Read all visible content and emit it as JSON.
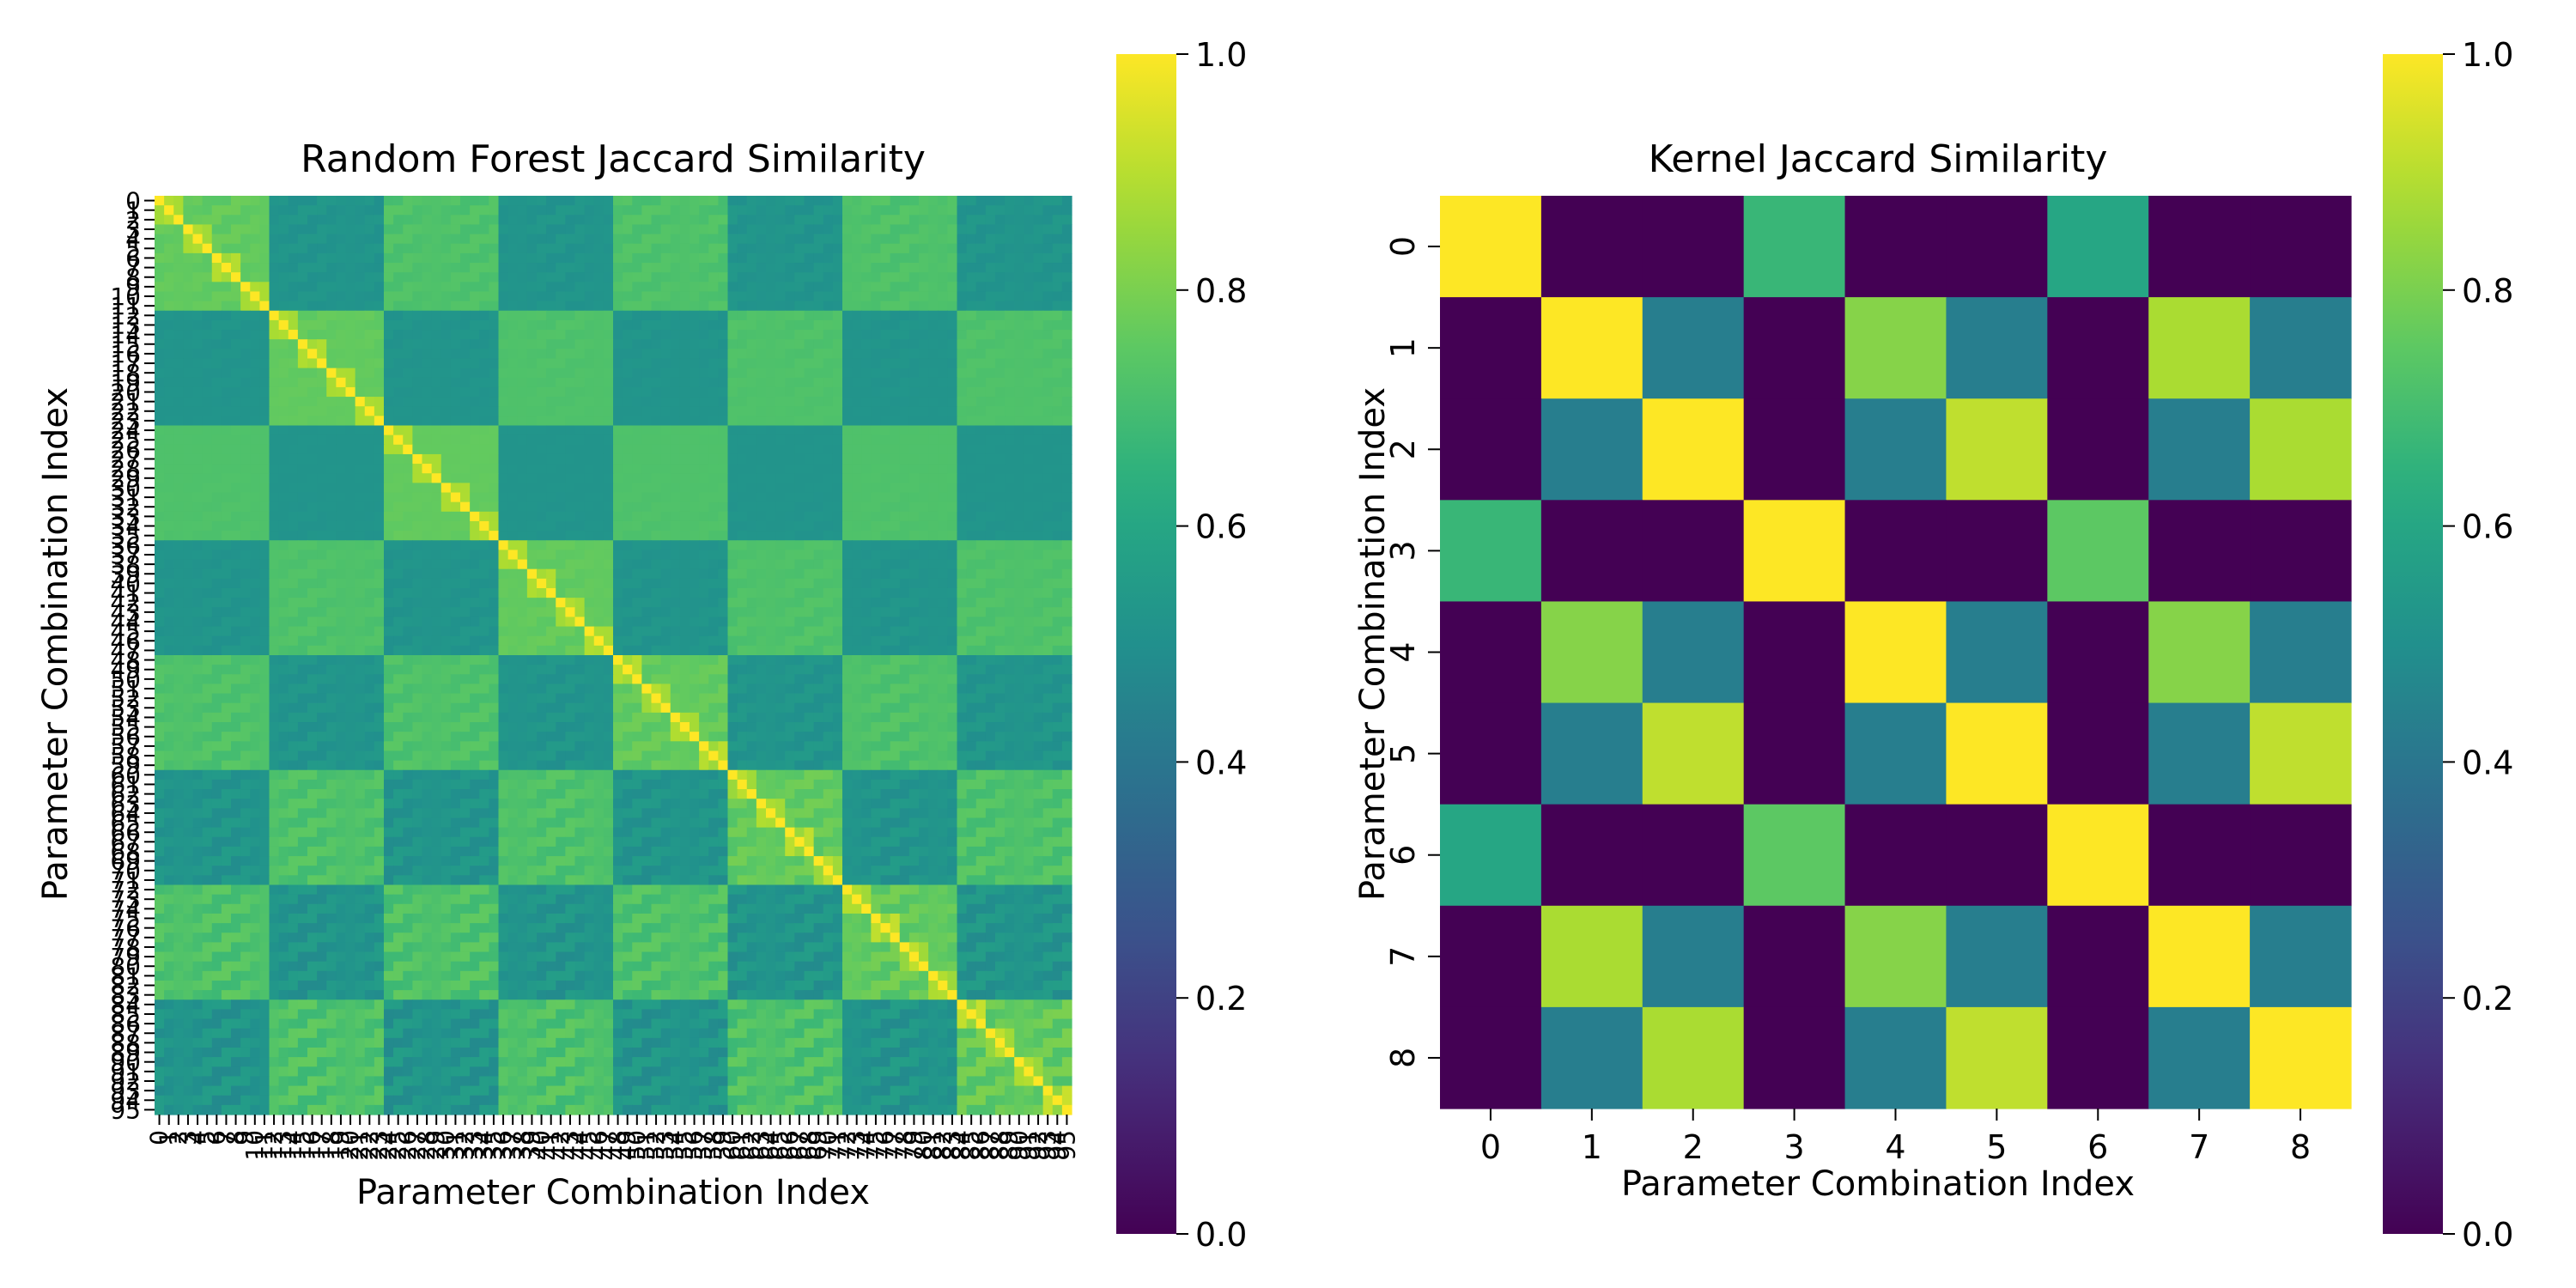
{
  "chart_data": [
    {
      "type": "heatmap",
      "title": "Random Forest Jaccard Similarity",
      "xlabel": "Parameter Combination Index",
      "ylabel": "Parameter Combination Index",
      "size": 96,
      "tick_labels": [
        "0",
        "1",
        "2",
        "3",
        "4",
        "5",
        "6",
        "7",
        "8",
        "9",
        "10",
        "11",
        "12",
        "13",
        "14",
        "15",
        "16",
        "17",
        "18",
        "19",
        "20",
        "21",
        "22",
        "23",
        "24",
        "25",
        "26",
        "27",
        "28",
        "29",
        "30",
        "31",
        "32",
        "33",
        "34",
        "35",
        "36",
        "37",
        "38",
        "39",
        "40",
        "41",
        "42",
        "43",
        "44",
        "45",
        "46",
        "47",
        "48",
        "49",
        "50",
        "51",
        "52",
        "53",
        "54",
        "55",
        "56",
        "57",
        "58",
        "59",
        "60",
        "61",
        "62",
        "63",
        "64",
        "65",
        "66",
        "67",
        "68",
        "69",
        "70",
        "71",
        "72",
        "73",
        "74",
        "75",
        "76",
        "77",
        "78",
        "79",
        "80",
        "81",
        "82",
        "83",
        "84",
        "85",
        "86",
        "87",
        "88",
        "89",
        "90",
        "91",
        "92",
        "93",
        "94",
        "95"
      ],
      "structure": {
        "description_of_pattern": "block structure: 96 combos = 4 outer groups x 8 mid x 3 inner",
        "diagonal": 1.0,
        "same_mid_block": 0.88,
        "same_outer_group_parity": 0.72,
        "other": 0.52
      },
      "colorbar": {
        "min": 0.0,
        "max": 1.0,
        "ticks": [
          "0.0",
          "0.2",
          "0.4",
          "0.6",
          "0.8",
          "1.0"
        ]
      },
      "colormap": "viridis"
    },
    {
      "type": "heatmap",
      "title": "Kernel Jaccard Similarity",
      "xlabel": "Parameter Combination Index",
      "ylabel": "Parameter Combination Index",
      "x_tick_labels": [
        "0",
        "1",
        "2",
        "3",
        "4",
        "5",
        "6",
        "7",
        "8"
      ],
      "y_tick_labels": [
        "0",
        "1",
        "2",
        "3",
        "4",
        "5",
        "6",
        "7",
        "8"
      ],
      "values": [
        [
          1.0,
          0.0,
          0.0,
          0.67,
          0.0,
          0.0,
          0.6,
          0.0,
          0.0
        ],
        [
          0.0,
          1.0,
          0.43,
          0.0,
          0.82,
          0.43,
          0.0,
          0.88,
          0.43
        ],
        [
          0.0,
          0.43,
          1.0,
          0.0,
          0.43,
          0.91,
          0.0,
          0.43,
          0.88
        ],
        [
          0.67,
          0.0,
          0.0,
          1.0,
          0.0,
          0.0,
          0.75,
          0.0,
          0.0
        ],
        [
          0.0,
          0.82,
          0.43,
          0.0,
          1.0,
          0.43,
          0.0,
          0.82,
          0.43
        ],
        [
          0.0,
          0.43,
          0.91,
          0.0,
          0.43,
          1.0,
          0.0,
          0.43,
          0.91
        ],
        [
          0.6,
          0.0,
          0.0,
          0.75,
          0.0,
          0.0,
          1.0,
          0.0,
          0.0
        ],
        [
          0.0,
          0.88,
          0.43,
          0.0,
          0.82,
          0.43,
          0.0,
          1.0,
          0.43
        ],
        [
          0.0,
          0.43,
          0.88,
          0.0,
          0.43,
          0.91,
          0.0,
          0.43,
          1.0
        ]
      ],
      "colorbar": {
        "min": 0.0,
        "max": 1.0,
        "ticks": [
          "0.0",
          "0.2",
          "0.4",
          "0.6",
          "0.8",
          "1.0"
        ]
      },
      "colormap": "viridis"
    }
  ]
}
